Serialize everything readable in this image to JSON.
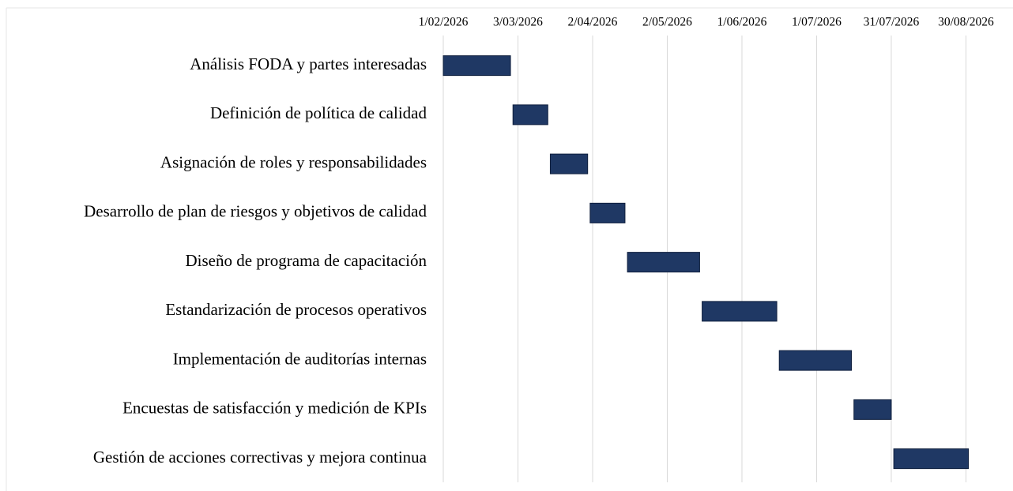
{
  "chart_data": {
    "type": "gantt",
    "categories": [
      "Análisis FODA y partes interesadas",
      "Definición de política de calidad",
      "Asignación de roles y responsabilidades",
      "Desarrollo de plan de riesgos y objetivos de calidad",
      "Diseño de programa de capacitación",
      "Estandarización de procesos operativos",
      "Implementación de auditorías internas",
      "Encuestas de satisfacción y medición de KPIs",
      "Gestión de acciones correctivas y mejora continua"
    ],
    "start": [
      "2026-02-01",
      "2026-03-01",
      "2026-03-16",
      "2026-04-01",
      "2026-04-16",
      "2026-05-16",
      "2026-06-16",
      "2026-07-16",
      "2026-08-01"
    ],
    "end": [
      "2026-02-28",
      "2026-03-15",
      "2026-03-31",
      "2026-04-15",
      "2026-05-15",
      "2026-06-15",
      "2026-07-15",
      "2026-07-31",
      "2026-08-31"
    ],
    "color": "#1f3864",
    "xlim": [
      "2026-02-01",
      "2026-08-31"
    ],
    "xticks": [
      {
        "value": "2026-02-01",
        "label": "1/02/2026"
      },
      {
        "value": "2026-03-03",
        "label": "3/03/2026"
      },
      {
        "value": "2026-04-02",
        "label": "2/04/2026"
      },
      {
        "value": "2026-05-02",
        "label": "2/05/2026"
      },
      {
        "value": "2026-06-01",
        "label": "1/06/2026"
      },
      {
        "value": "2026-07-01",
        "label": "1/07/2026"
      },
      {
        "value": "2026-07-31",
        "label": "31/07/2026"
      },
      {
        "value": "2026-08-30",
        "label": "30/08/2026"
      }
    ],
    "grid": true
  }
}
